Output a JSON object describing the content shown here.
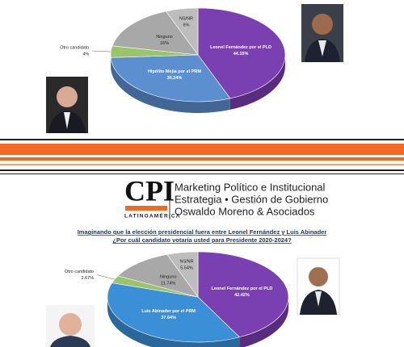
{
  "banner": {
    "logo": "CPI",
    "region": "LATINOAMÉRICA",
    "lines": [
      "Marketing Político e Institucional",
      "Estrategia • Gestión de Gobierno",
      "Oswaldo Moreno & Asociados"
    ]
  },
  "chart_data": [
    {
      "type": "pie",
      "categories": [
        "Leonel Fernández por el PLD",
        "Hipólito Mejía por el PRM",
        "Otro candidato",
        "Ninguno",
        "NS/NR"
      ],
      "values": [
        44.15,
        30.24,
        4,
        16,
        6
      ],
      "value_labels": [
        "44.15%",
        "30.24%",
        "4%",
        "16%",
        "6%"
      ],
      "colors": [
        "#7a3fb0",
        "#5b8fd0",
        "#9bc36a",
        "#a8a8a8",
        "#bdbdbd"
      ]
    },
    {
      "type": "pie",
      "title": "Imaginando que la elección presidencial fuera entre Leonel Fernández y Luis Abinader",
      "subtitle": "¿Por cuál candidato votaría usted para Presidente 2020-2024?",
      "categories": [
        "Leonel Fernández por el PLD",
        "Luis Abinader por el PRM",
        "Otro candidato",
        "Ninguno",
        "NS/NR"
      ],
      "values": [
        42.42,
        37.64,
        2.67,
        11.74,
        5.54
      ],
      "value_labels": [
        "42.42%",
        "37.64%",
        "2.67%",
        "11.74%",
        "5.54%"
      ],
      "colors": [
        "#7a3fb0",
        "#3a8fd6",
        "#9bc36a",
        "#a8a8a8",
        "#bdbdbd"
      ]
    }
  ]
}
